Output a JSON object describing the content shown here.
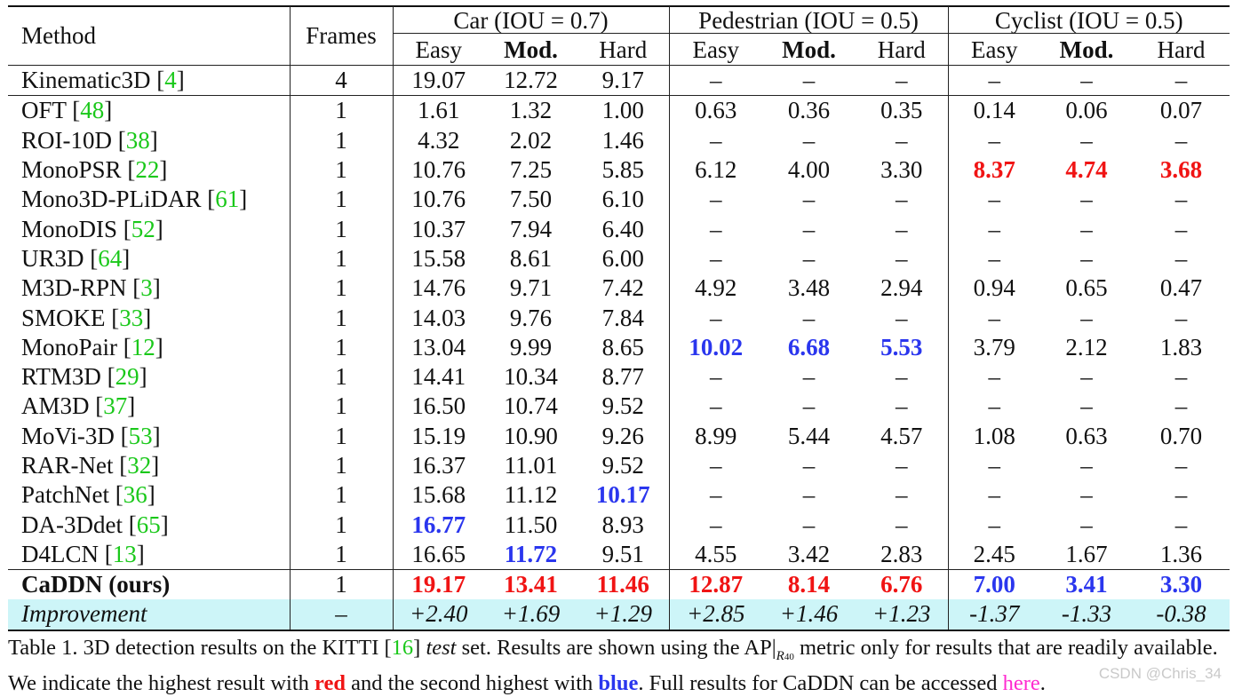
{
  "table": {
    "header": {
      "method": "Method",
      "frames": "Frames",
      "groups": [
        "Car (IOU = 0.7)",
        "Pedestrian (IOU = 0.5)",
        "Cyclist (IOU = 0.5)"
      ],
      "sub": [
        "Easy",
        "Mod.",
        "Hard"
      ]
    },
    "rows": [
      {
        "name": "Kinematic3D",
        "ref": "4",
        "frames": "4",
        "vals": [
          "19.07",
          "12.72",
          "9.17",
          "–",
          "–",
          "–",
          "–",
          "–",
          "–"
        ]
      },
      {
        "name": "OFT",
        "ref": "48",
        "frames": "1",
        "vals": [
          "1.61",
          "1.32",
          "1.00",
          "0.63",
          "0.36",
          "0.35",
          "0.14",
          "0.06",
          "0.07"
        ]
      },
      {
        "name": "ROI-10D",
        "ref": "38",
        "frames": "1",
        "vals": [
          "4.32",
          "2.02",
          "1.46",
          "–",
          "–",
          "–",
          "–",
          "–",
          "–"
        ]
      },
      {
        "name": "MonoPSR",
        "ref": "22",
        "frames": "1",
        "vals": [
          "10.76",
          "7.25",
          "5.85",
          "6.12",
          "4.00",
          "3.30",
          "8.37",
          "4.74",
          "3.68"
        ]
      },
      {
        "name": "Mono3D-PLiDAR",
        "ref": "61",
        "frames": "1",
        "vals": [
          "10.76",
          "7.50",
          "6.10",
          "–",
          "–",
          "–",
          "–",
          "–",
          "–"
        ]
      },
      {
        "name": "MonoDIS",
        "ref": "52",
        "frames": "1",
        "vals": [
          "10.37",
          "7.94",
          "6.40",
          "–",
          "–",
          "–",
          "–",
          "–",
          "–"
        ]
      },
      {
        "name": "UR3D",
        "ref": "64",
        "frames": "1",
        "vals": [
          "15.58",
          "8.61",
          "6.00",
          "–",
          "–",
          "–",
          "–",
          "–",
          "–"
        ]
      },
      {
        "name": "M3D-RPN",
        "ref": "3",
        "frames": "1",
        "vals": [
          "14.76",
          "9.71",
          "7.42",
          "4.92",
          "3.48",
          "2.94",
          "0.94",
          "0.65",
          "0.47"
        ]
      },
      {
        "name": "SMOKE",
        "ref": "33",
        "frames": "1",
        "vals": [
          "14.03",
          "9.76",
          "7.84",
          "–",
          "–",
          "–",
          "–",
          "–",
          "–"
        ]
      },
      {
        "name": "MonoPair",
        "ref": "12",
        "frames": "1",
        "vals": [
          "13.04",
          "9.99",
          "8.65",
          "10.02",
          "6.68",
          "5.53",
          "3.79",
          "2.12",
          "1.83"
        ]
      },
      {
        "name": "RTM3D",
        "ref": "29",
        "frames": "1",
        "vals": [
          "14.41",
          "10.34",
          "8.77",
          "–",
          "–",
          "–",
          "–",
          "–",
          "–"
        ]
      },
      {
        "name": "AM3D",
        "ref": "37",
        "frames": "1",
        "vals": [
          "16.50",
          "10.74",
          "9.52",
          "–",
          "–",
          "–",
          "–",
          "–",
          "–"
        ]
      },
      {
        "name": "MoVi-3D",
        "ref": "53",
        "frames": "1",
        "vals": [
          "15.19",
          "10.90",
          "9.26",
          "8.99",
          "5.44",
          "4.57",
          "1.08",
          "0.63",
          "0.70"
        ]
      },
      {
        "name": "RAR-Net",
        "ref": "32",
        "frames": "1",
        "vals": [
          "16.37",
          "11.01",
          "9.52",
          "–",
          "–",
          "–",
          "–",
          "–",
          "–"
        ]
      },
      {
        "name": "PatchNet",
        "ref": "36",
        "frames": "1",
        "vals": [
          "15.68",
          "11.12",
          "10.17",
          "–",
          "–",
          "–",
          "–",
          "–",
          "–"
        ]
      },
      {
        "name": "DA-3Ddet",
        "ref": "65",
        "frames": "1",
        "vals": [
          "16.77",
          "11.50",
          "8.93",
          "–",
          "–",
          "–",
          "–",
          "–",
          "–"
        ]
      },
      {
        "name": "D4LCN",
        "ref": "13",
        "frames": "1",
        "vals": [
          "16.65",
          "11.72",
          "9.51",
          "4.55",
          "3.42",
          "2.83",
          "2.45",
          "1.67",
          "1.36"
        ]
      }
    ],
    "ours": {
      "name": "CaDDN (ours)",
      "frames": "1",
      "vals": [
        "19.17",
        "13.41",
        "11.46",
        "12.87",
        "8.14",
        "6.76",
        "7.00",
        "3.41",
        "3.30"
      ]
    },
    "improvement": {
      "name": "Improvement",
      "frames": "–",
      "vals": [
        "+2.40",
        "+1.69",
        "+1.29",
        "+2.85",
        "+1.46",
        "+1.23",
        "-1.37",
        "-1.33",
        "-0.38"
      ]
    },
    "highlights": {
      "red": [
        "3-6",
        "3-7",
        "3-8",
        "ours-0",
        "ours-1",
        "ours-2",
        "ours-3",
        "ours-4",
        "ours-5"
      ],
      "blue": [
        "9-3",
        "9-4",
        "9-5",
        "14-2",
        "15-0",
        "16-1",
        "ours-6",
        "ours-7",
        "ours-8"
      ]
    },
    "colors": {
      "red": "#f01414",
      "blue": "#2a36ee",
      "ref": "#1ac81a",
      "improvement_bg": "#cdf5f8"
    }
  },
  "caption": {
    "t1": "Table 1. 3D detection results on the KITTI [",
    "ref16": "16",
    "t2": "] ",
    "test": "test",
    "t3": " set.  Results are shown using the AP|",
    "sub": "R",
    "sub2": "40",
    "t4": " metric only for results that are readily available. We indicate the highest result with ",
    "red": "red",
    "t5": " and the second highest with ",
    "blue": "blue",
    "t6": ". Full results for CaDDN can be accessed ",
    "here": "here",
    "t7": "."
  },
  "watermark": "CSDN @Chris_34"
}
